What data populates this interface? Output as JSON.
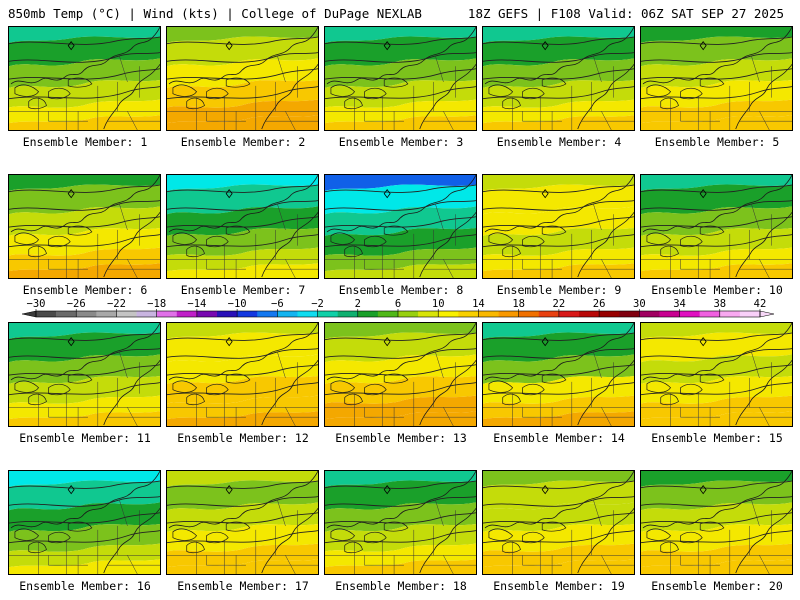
{
  "header": {
    "left": "850mb Temp (°C) | Wind (kts) | College of DuPage NEXLAB",
    "right": "18Z GEFS | F108 Valid: 06Z SAT SEP 27 2025"
  },
  "colors": {
    "cyan": "#00e8e8",
    "teal": "#10c890",
    "green": "#1aa02a",
    "yellowgreen": "#7cc21c",
    "lime": "#c4dc0a",
    "yellow": "#f4e800",
    "gold": "#f8c800",
    "orange": "#f4a800",
    "blue": "#1060e8"
  },
  "colorbar": {
    "tick_labels": [
      "−30",
      "−26",
      "−22",
      "−18",
      "−14",
      "−10",
      "−6",
      "−2",
      "2",
      "6",
      "10",
      "14",
      "18",
      "22",
      "26",
      "30",
      "34",
      "38",
      "42"
    ],
    "colors": [
      "#4a4a4a",
      "#6a6a6a",
      "#8a8a8a",
      "#a8a8a8",
      "#c4c4c4",
      "#c8b4e0",
      "#e070e8",
      "#c020c8",
      "#7808b0",
      "#2a10b8",
      "#1438e0",
      "#1478f0",
      "#14b4f0",
      "#10dcf0",
      "#10d0a8",
      "#10b070",
      "#1aa02a",
      "#50b818",
      "#98d010",
      "#d8e408",
      "#f8f000",
      "#f8d000",
      "#f8b800",
      "#f89800",
      "#f07000",
      "#e84010",
      "#d81818",
      "#b80808",
      "#980000",
      "#800010",
      "#a00060",
      "#c80090",
      "#e010c0",
      "#f060e0",
      "#f8a8f0",
      "#f8d0f8"
    ]
  },
  "panels": [
    {
      "label": "Ensemble Member: 1",
      "bands": [
        "teal",
        "green",
        "yellowgreen",
        "lime",
        "yellow",
        "gold"
      ]
    },
    {
      "label": "Ensemble Member: 2",
      "bands": [
        "yellowgreen",
        "lime",
        "yellow",
        "gold",
        "orange",
        "orange"
      ]
    },
    {
      "label": "Ensemble Member: 3",
      "bands": [
        "teal",
        "green",
        "yellowgreen",
        "lime",
        "yellow",
        "gold"
      ]
    },
    {
      "label": "Ensemble Member: 4",
      "bands": [
        "teal",
        "green",
        "yellowgreen",
        "lime",
        "yellow",
        "gold"
      ]
    },
    {
      "label": "Ensemble Member: 5",
      "bands": [
        "green",
        "yellowgreen",
        "lime",
        "yellow",
        "gold",
        "gold"
      ]
    },
    {
      "label": "Ensemble Member: 6",
      "bands": [
        "green",
        "yellowgreen",
        "lime",
        "yellow",
        "gold",
        "orange"
      ]
    },
    {
      "label": "Ensemble Member: 7",
      "bands": [
        "cyan",
        "teal",
        "green",
        "yellowgreen",
        "lime",
        "yellow"
      ]
    },
    {
      "label": "Ensemble Member: 8",
      "bands": [
        "blue",
        "cyan",
        "teal",
        "green",
        "yellowgreen",
        "lime"
      ]
    },
    {
      "label": "Ensemble Member: 9",
      "bands": [
        "lime",
        "yellow",
        "yellow",
        "lime",
        "yellow",
        "gold"
      ]
    },
    {
      "label": "Ensemble Member: 10",
      "bands": [
        "teal",
        "green",
        "yellowgreen",
        "lime",
        "yellow",
        "gold"
      ]
    },
    {
      "label": "Ensemble Member: 11",
      "bands": [
        "teal",
        "green",
        "yellowgreen",
        "lime",
        "yellow",
        "gold"
      ]
    },
    {
      "label": "Ensemble Member: 12",
      "bands": [
        "lime",
        "yellow",
        "yellow",
        "gold",
        "gold",
        "orange"
      ]
    },
    {
      "label": "Ensemble Member: 13",
      "bands": [
        "yellowgreen",
        "lime",
        "yellow",
        "gold",
        "orange",
        "orange"
      ]
    },
    {
      "label": "Ensemble Member: 14",
      "bands": [
        "teal",
        "green",
        "yellowgreen",
        "yellow",
        "gold",
        "orange"
      ]
    },
    {
      "label": "Ensemble Member: 15",
      "bands": [
        "lime",
        "yellow",
        "lime",
        "yellow",
        "gold",
        "gold"
      ]
    },
    {
      "label": "Ensemble Member: 16",
      "bands": [
        "cyan",
        "teal",
        "green",
        "yellowgreen",
        "lime",
        "yellow"
      ]
    },
    {
      "label": "Ensemble Member: 17",
      "bands": [
        "lime",
        "yellowgreen",
        "lime",
        "yellow",
        "gold",
        "gold"
      ]
    },
    {
      "label": "Ensemble Member: 18",
      "bands": [
        "teal",
        "green",
        "yellowgreen",
        "lime",
        "yellow",
        "gold"
      ]
    },
    {
      "label": "Ensemble Member: 19",
      "bands": [
        "yellowgreen",
        "lime",
        "lime",
        "yellow",
        "gold",
        "gold"
      ]
    },
    {
      "label": "Ensemble Member: 20",
      "bands": [
        "green",
        "yellowgreen",
        "lime",
        "yellow",
        "gold",
        "gold"
      ]
    }
  ]
}
